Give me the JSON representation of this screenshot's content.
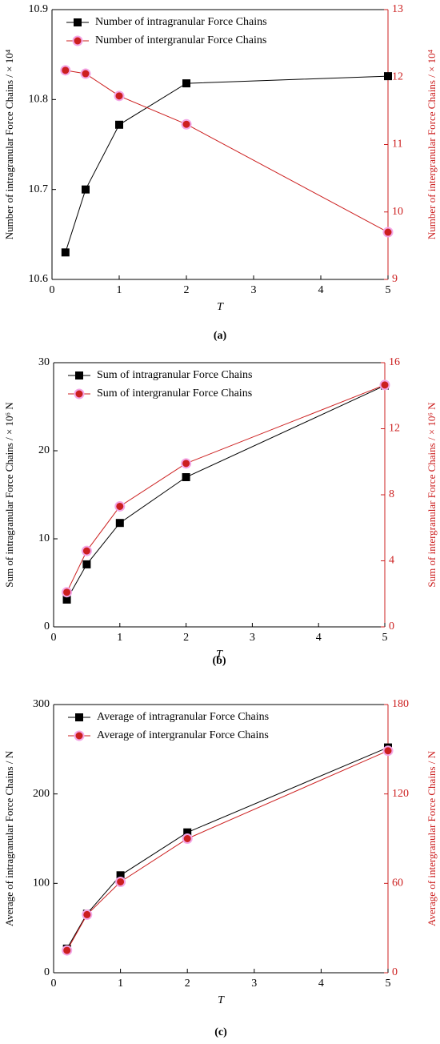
{
  "chart_data": [
    {
      "type": "line",
      "caption": "(a)",
      "xlabel": "T",
      "ylabel": "Number of intragranular Force Chains / × 10⁴",
      "y2label": "Number of intergranular Force Chains / × 10⁴",
      "x": [
        0.2,
        0.5,
        1,
        2,
        5
      ],
      "xlim": [
        0,
        5
      ],
      "xticks": [
        0,
        1,
        2,
        3,
        4,
        5
      ],
      "ylim": [
        10.6,
        10.9
      ],
      "yticks": [
        10.6,
        10.7,
        10.8,
        10.9
      ],
      "y2lim": [
        9,
        13
      ],
      "y2ticks": [
        9,
        10,
        11,
        12,
        13
      ],
      "legend": "upper left",
      "series": [
        {
          "name": "Number of intragranular Force Chains",
          "color": "#000000",
          "marker": "square",
          "values": [
            10.63,
            10.7,
            10.772,
            10.818,
            10.826
          ]
        },
        {
          "name": "Number of intergranular Force Chains",
          "color": "#cc1f1f",
          "marker": "circle",
          "axis": "y2",
          "values": [
            12.1,
            12.05,
            11.72,
            11.3,
            9.7
          ]
        }
      ]
    },
    {
      "type": "line",
      "caption": "(b)",
      "xlabel": "T",
      "ylabel": "Sum of intragranular Force Chains / × 10⁶ N",
      "y2label": "Sum of intergranular Force Chains / × 10⁶ N",
      "x": [
        0.2,
        0.5,
        1,
        2,
        5
      ],
      "xlim": [
        0,
        5
      ],
      "xticks": [
        0,
        1,
        2,
        3,
        4,
        5
      ],
      "ylim": [
        0,
        30
      ],
      "yticks": [
        0,
        10,
        20,
        30
      ],
      "y2lim": [
        0,
        16
      ],
      "y2ticks": [
        0,
        4,
        8,
        12,
        16
      ],
      "legend": "upper left",
      "series": [
        {
          "name": "Sum of intragranular Force Chains",
          "color": "#000000",
          "marker": "square",
          "values": [
            3.1,
            7.1,
            11.8,
            17.0,
            27.4
          ]
        },
        {
          "name": "Sum of intergranular Force Chains",
          "color": "#cc1f1f",
          "marker": "circle",
          "axis": "y2",
          "values": [
            2.1,
            4.6,
            7.3,
            9.9,
            14.65
          ]
        }
      ]
    },
    {
      "type": "line",
      "caption": "(c)",
      "xlabel": "T",
      "ylabel": "Average of intragranular Force Chains / N",
      "y2label": "Average of intergranular Force Chains / N",
      "x": [
        0.2,
        0.5,
        1,
        2,
        5
      ],
      "xlim": [
        0,
        5
      ],
      "xticks": [
        0,
        1,
        2,
        3,
        4,
        5
      ],
      "ylim": [
        0,
        300
      ],
      "yticks": [
        0,
        100,
        200,
        300
      ],
      "y2lim": [
        0,
        180
      ],
      "y2ticks": [
        0,
        60,
        120,
        180
      ],
      "legend": "upper left",
      "series": [
        {
          "name": "Average of intragranular Force Chains",
          "color": "#000000",
          "marker": "square",
          "values": [
            27,
            66,
            109,
            157,
            252
          ]
        },
        {
          "name": "Average of intergranular Force Chains",
          "color": "#cc1f1f",
          "marker": "circle",
          "axis": "y2",
          "values": [
            15,
            39,
            61,
            90,
            149
          ]
        }
      ]
    }
  ]
}
